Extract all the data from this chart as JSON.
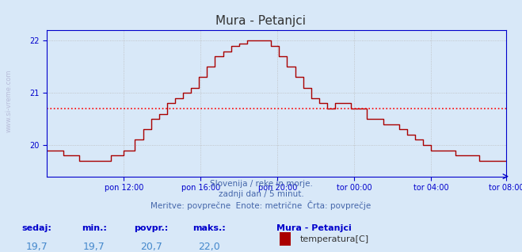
{
  "title": "Mura - Petanjci",
  "bg_color": "#d8e8f8",
  "plot_bg_color": "#d8e8f8",
  "line_color": "#aa0000",
  "avg_line_color": "#ff0000",
  "avg_value": 20.7,
  "y_min": 19.4,
  "y_max": 22.2,
  "y_ticks": [
    20,
    21,
    22
  ],
  "x_tick_labels": [
    "pon 12:00",
    "pon 16:00",
    "pon 20:00",
    "tor 00:00",
    "tor 04:00",
    "tor 08:00"
  ],
  "subtitle_lines": [
    "Slovenija / reke in morje.",
    "zadnji dan / 5 minut.",
    "Meritve: povprečne  Enote: metrične  Črta: povprečje"
  ],
  "legend_title": "Mura - Petanjci",
  "legend_color": "#aa0000",
  "legend_label": "temperatura[C]",
  "stat_labels": [
    "sedaj:",
    "min.:",
    "povpr.:",
    "maks.:"
  ],
  "stat_values": [
    "19,7",
    "19,7",
    "20,7",
    "22,0"
  ],
  "grid_color": "#bbbbbb",
  "axis_color": "#0000cc",
  "watermark": "www.si-vreme.com",
  "n_points": 288
}
